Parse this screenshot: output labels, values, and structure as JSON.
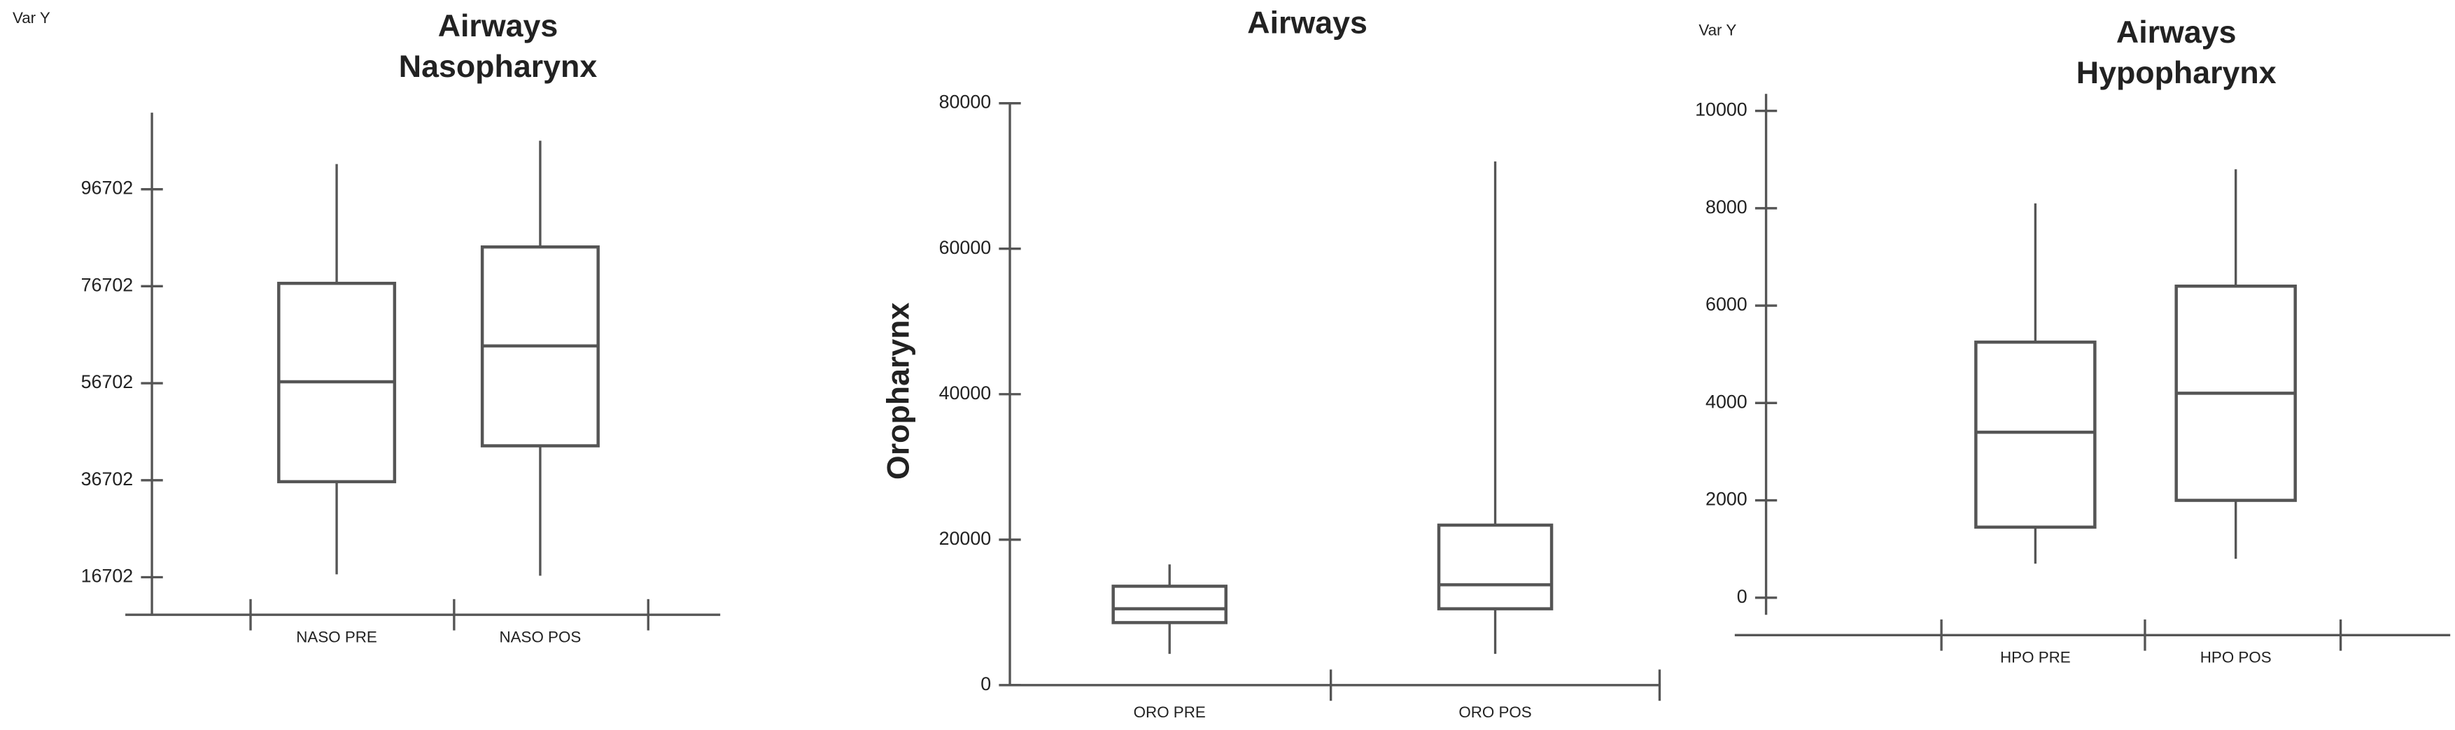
{
  "chart_data": [
    {
      "type": "box",
      "title": "Airways",
      "subtitle": "Nasopharynx",
      "y_corner_label": "Var Y",
      "categories": [
        "NASO PRE",
        "NASO POS"
      ],
      "boxes": [
        {
          "min": 17300,
          "q1": 36400,
          "median": 57000,
          "q3": 77300,
          "max": 101900
        },
        {
          "min": 17000,
          "q1": 43800,
          "median": 64400,
          "q3": 84800,
          "max": 106700
        }
      ],
      "ylim": [
        8960,
        112500
      ],
      "yticks": [
        16702,
        36702,
        56702,
        76702,
        96702
      ],
      "color": "#555555"
    },
    {
      "type": "box",
      "title": "Airways",
      "ylabel": "Oropharynx",
      "categories": [
        "ORO PRE",
        "ORO POS"
      ],
      "boxes": [
        {
          "min": 4300,
          "q1": 8600,
          "median": 10500,
          "q3": 13600,
          "max": 16600
        },
        {
          "min": 4300,
          "q1": 10500,
          "median": 13800,
          "q3": 22000,
          "max": 72000
        }
      ],
      "ylim": [
        0,
        80000
      ],
      "yticks": [
        0,
        20000,
        40000,
        60000,
        80000
      ],
      "color": "#555555"
    },
    {
      "type": "box",
      "title": "Airways",
      "subtitle": "Hypopharynx",
      "y_corner_label": "Var Y",
      "categories": [
        "HPO PRE",
        "HPO POS"
      ],
      "boxes": [
        {
          "min": 700,
          "q1": 1450,
          "median": 3400,
          "q3": 5250,
          "max": 8100
        },
        {
          "min": 800,
          "q1": 2000,
          "median": 4200,
          "q3": 6400,
          "max": 8800
        }
      ],
      "ylim": [
        -350,
        10350
      ],
      "yticks": [
        0,
        2000,
        4000,
        6000,
        8000,
        10000
      ],
      "color": "#555555"
    }
  ]
}
